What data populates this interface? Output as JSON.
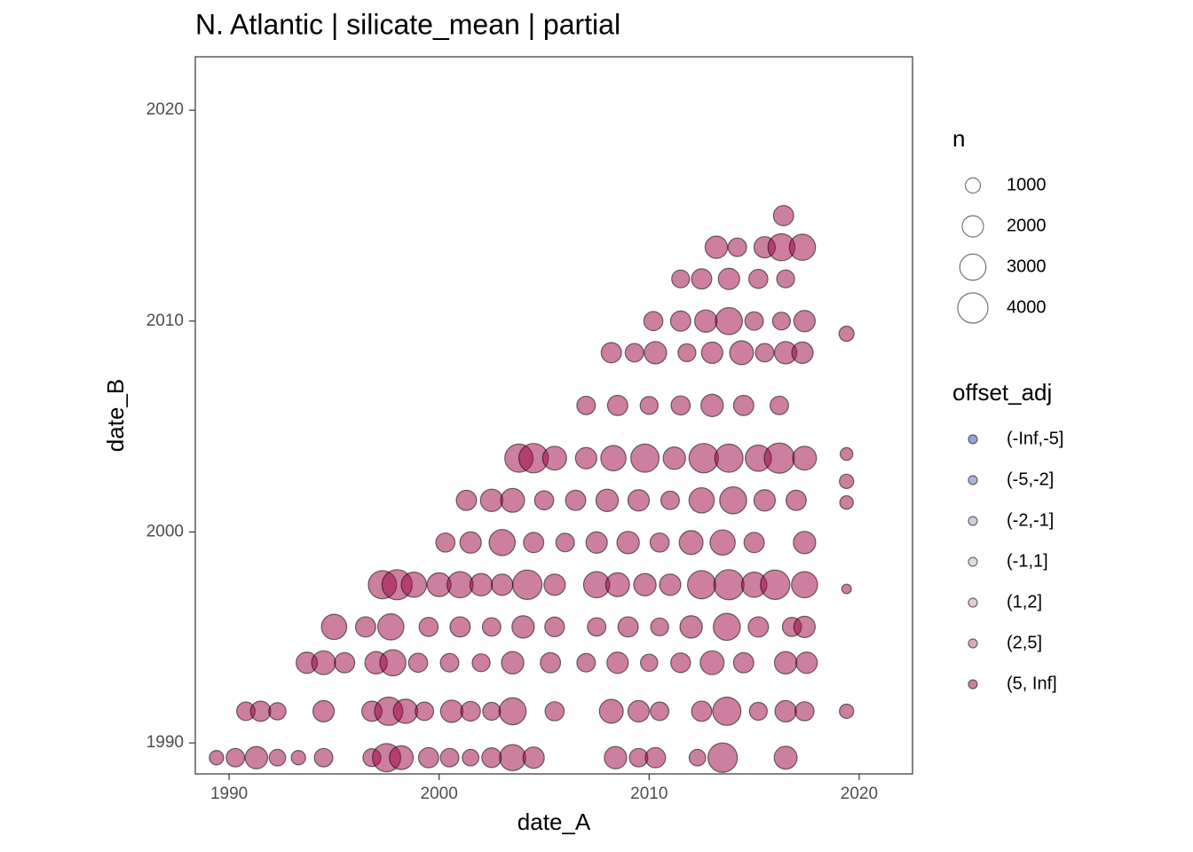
{
  "chart_data": {
    "type": "scatter",
    "title": "N. Atlantic | silicate_mean | partial",
    "x_label": "date_A",
    "y_label": "date_B",
    "xlim": [
      1988.39,
      2022.54
    ],
    "ylim": [
      1988.53,
      2022.53
    ],
    "xticks": [
      1990,
      2000,
      2010,
      2020
    ],
    "yticks": [
      1990,
      2000,
      2010,
      2020
    ],
    "size_legend": {
      "title": "n",
      "values": [
        1000,
        2000,
        3000,
        4000
      ]
    },
    "color_legend_title": "offset_adj",
    "series": [
      {
        "name": "(-Inf,-5]",
        "color": "#2c4aa8",
        "x": [],
        "values": [],
        "sizes": []
      },
      {
        "name": "(-5,-2]",
        "color": "#5a6fb0",
        "x": [],
        "values": [],
        "sizes": []
      },
      {
        "name": "(-2,-1]",
        "color": "#9a9ab8",
        "x": [],
        "values": [],
        "sizes": []
      },
      {
        "name": "(-1,1]",
        "color": "#bbbbbb",
        "x": [],
        "values": [],
        "sizes": []
      },
      {
        "name": "(1,2]",
        "color": "#c99aaa",
        "x": [],
        "values": [],
        "sizes": []
      },
      {
        "name": "(2,5]",
        "color": "#b25c7a",
        "x": [],
        "values": [],
        "sizes": []
      },
      {
        "name": "(5, Inf]",
        "color": "#99003d",
        "x": [
          1989.4,
          1990.3,
          1991.3,
          1992.3,
          1993.3,
          1994.5,
          1996.8,
          1997.5,
          1998.2,
          1999.5,
          2000.5,
          2001.5,
          2002.5,
          2003.5,
          2004.5,
          2008.4,
          2009.5,
          2010.3,
          2012.3,
          2013.5,
          2016.5,
          1990.8,
          1991.5,
          1992.3,
          1994.5,
          1996.8,
          1997.6,
          1998.4,
          1999.3,
          2000.6,
          2001.5,
          2002.5,
          2003.5,
          2005.5,
          2008.2,
          2009.5,
          2010.5,
          2012.5,
          2013.7,
          2015.2,
          2016.5,
          2017.4,
          1993.7,
          1994.5,
          1995.5,
          1997.0,
          1997.8,
          1999.0,
          2000.5,
          2002.0,
          2003.5,
          2005.3,
          2007.0,
          2008.5,
          2010.0,
          2011.5,
          2013.0,
          2014.5,
          2016.5,
          2017.5,
          1995.0,
          1996.5,
          1997.7,
          1999.5,
          2001.0,
          2002.5,
          2004.0,
          2005.5,
          2007.5,
          2009.0,
          2010.5,
          2012.0,
          2013.7,
          2015.2,
          2016.8,
          2017.4,
          1997.3,
          1998.0,
          1998.8,
          2000.0,
          2001.0,
          2002.0,
          2003.0,
          2004.2,
          2005.5,
          2007.5,
          2008.5,
          2009.8,
          2011.0,
          2012.5,
          2013.8,
          2015.0,
          2016.0,
          2017.4,
          2000.3,
          2001.5,
          2003.0,
          2004.5,
          2006.0,
          2007.5,
          2009.0,
          2010.5,
          2012.0,
          2013.5,
          2015.0,
          2017.4,
          2001.3,
          2002.5,
          2003.5,
          2005.0,
          2006.5,
          2008.0,
          2009.5,
          2011.0,
          2012.5,
          2014.0,
          2015.5,
          2017.0,
          2003.8,
          2004.5,
          2005.5,
          2007.0,
          2008.3,
          2009.8,
          2011.2,
          2012.6,
          2013.8,
          2015.2,
          2016.2,
          2017.4,
          2007.0,
          2008.5,
          2010.0,
          2011.5,
          2013.0,
          2014.5,
          2016.2,
          2008.2,
          2009.3,
          2010.3,
          2011.8,
          2013.0,
          2014.4,
          2015.5,
          2016.5,
          2017.3,
          2010.2,
          2011.5,
          2012.7,
          2013.8,
          2015.0,
          2016.3,
          2017.4,
          2011.5,
          2012.5,
          2013.8,
          2015.2,
          2016.5,
          2013.2,
          2014.2,
          2015.5,
          2016.3,
          2017.3,
          2016.4,
          2019.4,
          2019.4,
          2019.4,
          2019.4,
          2019.4,
          2019.4
        ],
        "values": [
          1989.3,
          1989.3,
          1989.3,
          1989.3,
          1989.3,
          1989.3,
          1989.3,
          1989.3,
          1989.3,
          1989.3,
          1989.3,
          1989.3,
          1989.3,
          1989.3,
          1989.3,
          1989.3,
          1989.3,
          1989.3,
          1989.3,
          1989.3,
          1989.3,
          1991.5,
          1991.5,
          1991.5,
          1991.5,
          1991.5,
          1991.5,
          1991.5,
          1991.5,
          1991.5,
          1991.5,
          1991.5,
          1991.5,
          1991.5,
          1991.5,
          1991.5,
          1991.5,
          1991.5,
          1991.5,
          1991.5,
          1991.5,
          1991.5,
          1993.8,
          1993.8,
          1993.8,
          1993.8,
          1993.8,
          1993.8,
          1993.8,
          1993.8,
          1993.8,
          1993.8,
          1993.8,
          1993.8,
          1993.8,
          1993.8,
          1993.8,
          1993.8,
          1993.8,
          1993.8,
          1995.5,
          1995.5,
          1995.5,
          1995.5,
          1995.5,
          1995.5,
          1995.5,
          1995.5,
          1995.5,
          1995.5,
          1995.5,
          1995.5,
          1995.5,
          1995.5,
          1995.5,
          1995.5,
          1997.5,
          1997.5,
          1997.5,
          1997.5,
          1997.5,
          1997.5,
          1997.5,
          1997.5,
          1997.5,
          1997.5,
          1997.5,
          1997.5,
          1997.5,
          1997.5,
          1997.5,
          1997.5,
          1997.5,
          1997.5,
          1999.5,
          1999.5,
          1999.5,
          1999.5,
          1999.5,
          1999.5,
          1999.5,
          1999.5,
          1999.5,
          1999.5,
          1999.5,
          1999.5,
          2001.5,
          2001.5,
          2001.5,
          2001.5,
          2001.5,
          2001.5,
          2001.5,
          2001.5,
          2001.5,
          2001.5,
          2001.5,
          2001.5,
          2003.5,
          2003.5,
          2003.5,
          2003.5,
          2003.5,
          2003.5,
          2003.5,
          2003.5,
          2003.5,
          2003.5,
          2003.5,
          2003.5,
          2006,
          2006,
          2006,
          2006,
          2006,
          2006,
          2006,
          2008.5,
          2008.5,
          2008.5,
          2008.5,
          2008.5,
          2008.5,
          2008.5,
          2008.5,
          2008.5,
          2010,
          2010,
          2010,
          2010,
          2010,
          2010,
          2010,
          2012,
          2012,
          2012,
          2012,
          2012,
          2013.5,
          2013.5,
          2013.5,
          2013.5,
          2013.5,
          2015,
          2009.4,
          2003.7,
          2002.4,
          2001.4,
          1997.3,
          1991.5
        ],
        "sizes": [
          900,
          1500,
          2200,
          1200,
          900,
          1500,
          1400,
          3500,
          2500,
          1800,
          1500,
          1200,
          1700,
          3000,
          2000,
          2200,
          1500,
          1800,
          1200,
          3800,
          2300,
          1500,
          1800,
          1300,
          2000,
          1800,
          3500,
          2600,
          1500,
          2200,
          1700,
          1400,
          3200,
          1600,
          2500,
          2000,
          1500,
          1800,
          3500,
          1400,
          2000,
          1600,
          2000,
          2500,
          1800,
          2200,
          3000,
          1600,
          1500,
          1400,
          2200,
          1800,
          1500,
          2000,
          1300,
          1700,
          2500,
          1800,
          2200,
          2000,
          2800,
          1800,
          3000,
          1600,
          1800,
          1500,
          2200,
          1700,
          1500,
          1800,
          1400,
          2200,
          3200,
          1800,
          1600,
          2000,
          3500,
          4000,
          2800,
          2500,
          3000,
          2200,
          2000,
          3800,
          2000,
          3000,
          2500,
          2200,
          2000,
          3500,
          4000,
          2800,
          3800,
          3000,
          1600,
          2000,
          3000,
          1800,
          1500,
          2000,
          2200,
          1600,
          2500,
          2800,
          1800,
          2200,
          1800,
          2200,
          2500,
          1600,
          1800,
          2200,
          2000,
          1500,
          2800,
          3200,
          2000,
          1800,
          3500,
          3800,
          2500,
          2000,
          2800,
          3500,
          2200,
          3800,
          3500,
          3000,
          4000,
          2500,
          1500,
          1800,
          1400,
          1600,
          2200,
          1800,
          1500,
          1800,
          1500,
          2200,
          1400,
          2000,
          2500,
          1500,
          2200,
          2000,
          1600,
          1800,
          2200,
          3200,
          1500,
          1400,
          2000,
          1400,
          1800,
          2000,
          1600,
          1400,
          2200,
          1500,
          2000,
          3200,
          3000,
          1800,
          1000,
          700,
          900,
          800,
          400,
          900
        ]
      }
    ]
  }
}
